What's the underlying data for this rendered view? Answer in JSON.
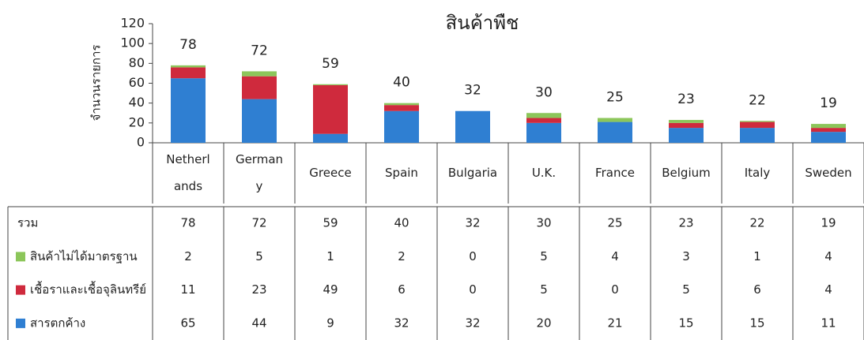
{
  "chart_data": {
    "type": "stacked_bar",
    "title": "สินค้าพืช",
    "y_label": "จำนวนรายการ",
    "categories": [
      [
        "Netherl",
        "ands"
      ],
      [
        "German",
        "y"
      ],
      [
        "Greece"
      ],
      [
        "Spain"
      ],
      [
        "Bulgaria"
      ],
      [
        "U.K."
      ],
      [
        "France"
      ],
      [
        "Belgium"
      ],
      [
        "Italy"
      ],
      [
        "Sweden"
      ]
    ],
    "series": [
      {
        "name": "สารตกค้าง",
        "color": "#2f7fd2",
        "values": [
          65,
          44,
          9,
          32,
          32,
          20,
          21,
          15,
          15,
          11
        ]
      },
      {
        "name": "เชื้อราและเชื้อจุลินทรีย์",
        "color": "#cf2a3d",
        "values": [
          11,
          23,
          49,
          6,
          0,
          5,
          0,
          5,
          6,
          4
        ]
      },
      {
        "name": "สินค้าไม่ได้มาตรฐาน",
        "color": "#8cc65a",
        "values": [
          2,
          5,
          1,
          2,
          0,
          5,
          4,
          3,
          1,
          4
        ]
      }
    ],
    "totals": {
      "name": "รวม",
      "values": [
        78,
        72,
        59,
        40,
        32,
        30,
        25,
        23,
        22,
        19
      ]
    },
    "ylim": [
      0,
      120
    ],
    "yticks": [
      0,
      20,
      40,
      60,
      80,
      100,
      120
    ],
    "grid": false
  }
}
